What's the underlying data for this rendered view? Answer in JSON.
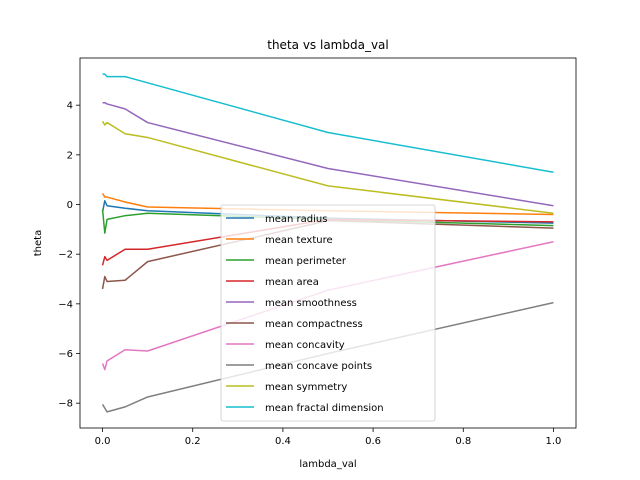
{
  "chart_data": {
    "type": "line",
    "title": "theta vs lambda_val",
    "xlabel": "lambda_val",
    "ylabel": "theta",
    "xlim": [
      -0.05,
      1.05
    ],
    "ylim": [
      -9.0,
      5.9
    ],
    "xticks": [
      0.0,
      0.2,
      0.4,
      0.6,
      0.8,
      1.0
    ],
    "xtick_labels": [
      "0.0",
      "0.2",
      "0.4",
      "0.6",
      "0.8",
      "1.0"
    ],
    "yticks": [
      -8,
      -6,
      -4,
      -2,
      0,
      2,
      4
    ],
    "ytick_labels": [
      "−8",
      "−6",
      "−4",
      "−2",
      "0",
      "2",
      "4"
    ],
    "grid": false,
    "legend_position": "lower-center",
    "x": [
      0.0,
      0.005,
      0.01,
      0.05,
      0.1,
      0.5,
      1.0
    ],
    "series": [
      {
        "name": "mean radius",
        "color": "#1f77b4",
        "values": [
          -0.3,
          0.15,
          -0.05,
          -0.15,
          -0.25,
          -0.55,
          -0.75
        ]
      },
      {
        "name": "mean texture",
        "color": "#ff7f0e",
        "values": [
          0.45,
          0.3,
          0.3,
          0.1,
          -0.1,
          -0.25,
          -0.4
        ]
      },
      {
        "name": "mean perimeter",
        "color": "#2ca02c",
        "values": [
          -0.2,
          -1.15,
          -0.6,
          -0.45,
          -0.35,
          -0.6,
          -0.85
        ]
      },
      {
        "name": "mean area",
        "color": "#d62728",
        "values": [
          -2.45,
          -2.1,
          -2.25,
          -1.8,
          -1.8,
          -0.6,
          -0.7
        ]
      },
      {
        "name": "mean smoothness",
        "color": "#9467bd",
        "values": [
          4.1,
          4.1,
          4.05,
          3.85,
          3.3,
          1.45,
          -0.05
        ]
      },
      {
        "name": "mean compactness",
        "color": "#8c564b",
        "values": [
          -3.4,
          -2.9,
          -3.1,
          -3.05,
          -2.3,
          -0.65,
          -0.95
        ]
      },
      {
        "name": "mean concavity",
        "color": "#e377c2",
        "values": [
          -6.4,
          -6.65,
          -6.3,
          -5.85,
          -5.9,
          -3.45,
          -1.5
        ]
      },
      {
        "name": "mean concave points",
        "color": "#7f7f7f",
        "values": [
          -8.05,
          -8.2,
          -8.35,
          -8.15,
          -7.75,
          -6.0,
          -3.95
        ]
      },
      {
        "name": "mean symmetry",
        "color": "#bcbd22",
        "values": [
          3.35,
          3.2,
          3.3,
          2.85,
          2.7,
          0.75,
          -0.35
        ]
      },
      {
        "name": "mean fractal dimension",
        "color": "#17becf",
        "values": [
          5.25,
          5.25,
          5.15,
          5.15,
          4.9,
          2.9,
          1.3
        ]
      }
    ]
  }
}
